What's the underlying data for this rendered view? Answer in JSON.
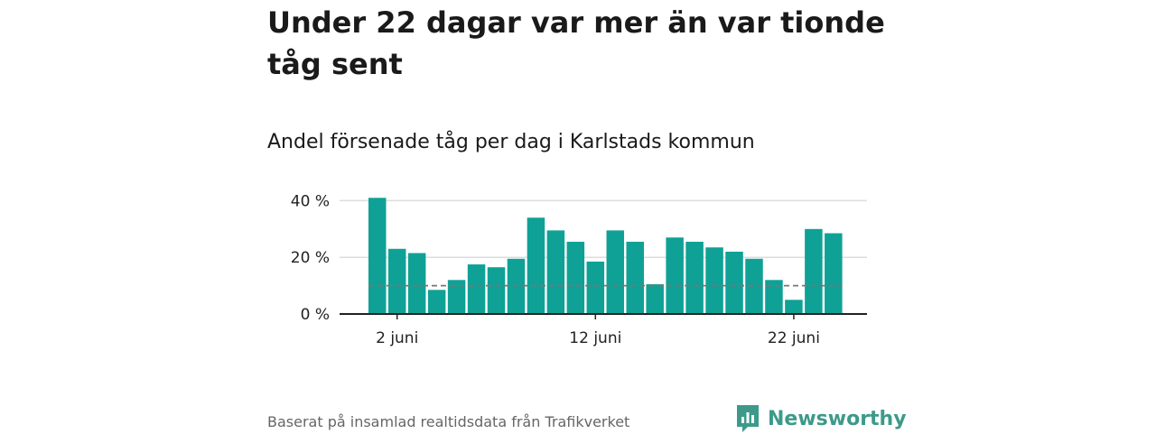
{
  "title": "Under 22 dagar var mer än var tionde tåg sent",
  "subtitle": "Andel försenade tåg per dag i Karlstads kommun",
  "source": "Baserat på insamlad realtidsdata från Trafikverket",
  "brand": "Newsworthy",
  "colors": {
    "bar": "#0fa196",
    "reference": "#777777",
    "grid": "#dddddd",
    "brand": "#3d9a8b"
  },
  "chart_data": {
    "type": "bar",
    "x": [
      "1 juni",
      "2 juni",
      "3 juni",
      "4 juni",
      "5 juni",
      "6 juni",
      "7 juni",
      "8 juni",
      "9 juni",
      "10 juni",
      "11 juni",
      "12 juni",
      "13 juni",
      "14 juni",
      "15 juni",
      "16 juni",
      "17 juni",
      "18 juni",
      "19 juni",
      "20 juni",
      "21 juni",
      "22 juni",
      "23 juni",
      "24 juni"
    ],
    "values": [
      41,
      23,
      21.5,
      8.5,
      12,
      17.5,
      16.5,
      19.5,
      34,
      29.5,
      25.5,
      18.5,
      29.5,
      25.5,
      10.5,
      27,
      25.5,
      23.5,
      22,
      19.5,
      12,
      5,
      30,
      28.5
    ],
    "reference_line": 10,
    "ylim": [
      0,
      42
    ],
    "yticks": [
      0,
      20,
      40
    ],
    "ytick_labels": [
      "0 %",
      "20 %",
      "40 %"
    ],
    "xtick_labels": [
      "2 juni",
      "12 juni",
      "22 juni"
    ],
    "xtick_index": [
      1,
      11,
      21
    ],
    "grid": true,
    "legend": "none"
  }
}
